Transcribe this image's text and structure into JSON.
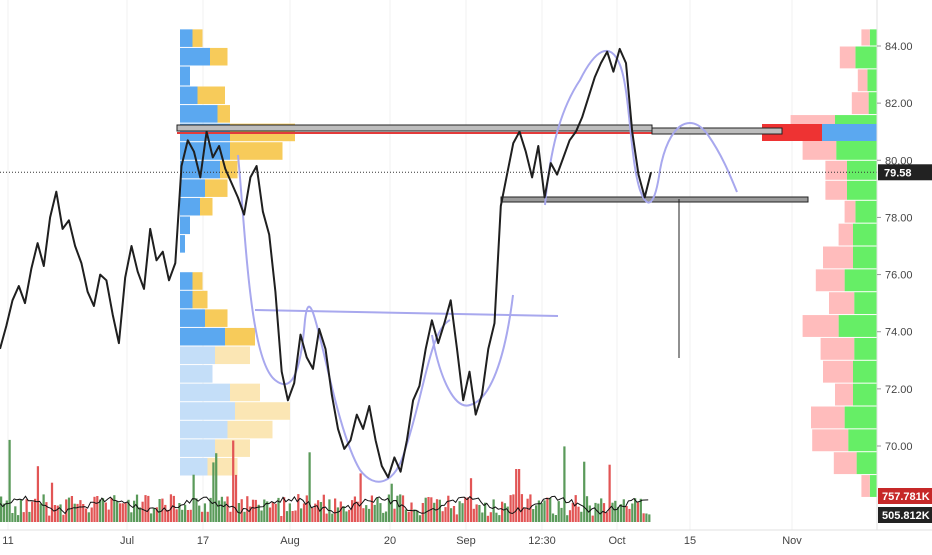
{
  "colors": {
    "price_line": "#1f1f1f",
    "pattern": "#a8a8ee",
    "vp_left_up": "#5ba8f0",
    "vp_left_down": "#f7cb5a",
    "vp_left_up_light": "#c4def8",
    "vp_left_down_light": "#fbe6b4",
    "vp_right_buy": "#66ee66",
    "vp_right_sell": "#ffbcbc",
    "poc_blue": "#5ba8f0",
    "poc_red": "#ee3333",
    "vol_up": "#5a9a5a",
    "vol_down": "#e25555",
    "vol_ma": "#111111",
    "zone_box_fill": "#bdbdbd",
    "zone_box_red_line": "#e33b3b",
    "axis_text": "#444444",
    "grid": "#f1f1f1",
    "badge_dark": "#222222",
    "badge_red": "#c62828"
  },
  "time_axis": {
    "labels": [
      "11",
      "Jul",
      "17",
      "Aug",
      "20",
      "Sep",
      "12:30",
      "Oct",
      "15",
      "Nov"
    ]
  },
  "price_axis": {
    "ticks": [
      "84.00",
      "82.00",
      "80.00",
      "78.00",
      "76.00",
      "74.00",
      "72.00",
      "70.00"
    ],
    "current_price_label": "79.58"
  },
  "volume_labels": {
    "volume": "757.781K",
    "volume_ma": "505.812K"
  },
  "chart_data": {
    "type": "line",
    "title": "",
    "xlabel": "",
    "ylabel": "",
    "ylim": [
      68.5,
      85.2
    ],
    "current_price": 79.58,
    "series": [
      {
        "values": [
          73.4,
          74.2,
          75.1,
          75.6,
          75.0,
          76.2,
          77.1,
          76.3,
          78.0,
          78.9,
          77.6,
          77.9,
          77.0,
          76.4,
          75.4,
          74.9,
          76.0,
          75.8,
          74.6,
          73.6,
          75.9,
          77.0,
          76.1,
          75.5,
          77.6,
          76.5,
          76.8,
          75.8,
          76.4,
          79.8,
          80.7,
          80.3,
          79.4,
          81.0,
          80.1,
          80.5,
          79.7,
          79.2,
          78.7,
          78.1,
          79.4,
          79.8,
          78.2,
          77.4,
          75.4,
          72.6,
          71.6,
          72.2,
          73.9,
          73.1,
          72.7,
          74.1,
          73.4,
          71.8,
          70.6,
          69.9,
          70.2,
          71.1,
          70.6,
          71.4,
          70.2,
          69.3,
          68.9,
          69.6,
          69.1,
          70.2,
          71.6,
          72.1,
          73.4,
          74.4,
          73.6,
          74.3,
          75.1,
          73.4,
          71.6,
          72.6,
          71.1,
          71.8,
          73.4,
          74.3,
          78.4,
          79.5,
          80.6,
          81.0,
          80.3,
          79.4,
          80.5,
          78.7,
          79.9,
          79.5,
          80.1,
          80.7,
          81.0,
          81.5,
          82.2,
          82.9,
          83.4,
          83.8,
          83.1,
          83.9,
          83.4,
          81.0,
          79.5,
          78.7,
          79.58
        ]
      }
    ],
    "volume_profile_left": {
      "price_ranges": [
        [
          83.95,
          84.6
        ],
        [
          83.3,
          83.95
        ],
        [
          82.6,
          83.3
        ],
        [
          81.95,
          82.6
        ],
        [
          81.3,
          81.95
        ],
        [
          80.65,
          81.3
        ],
        [
          80.0,
          80.65
        ],
        [
          79.35,
          80.0
        ],
        [
          78.7,
          79.35
        ],
        [
          78.05,
          78.7
        ],
        [
          77.4,
          78.05
        ],
        [
          76.75,
          77.4
        ],
        [
          76.1,
          76.75
        ],
        [
          75.45,
          76.1
        ],
        [
          74.8,
          75.45
        ],
        [
          74.15,
          74.8
        ],
        [
          73.5,
          74.15
        ],
        [
          72.85,
          73.5
        ],
        [
          72.2,
          72.85
        ],
        [
          71.55,
          72.2
        ],
        [
          70.9,
          71.55
        ],
        [
          70.25,
          70.9
        ],
        [
          69.6,
          70.25
        ],
        [
          68.95,
          69.6
        ]
      ],
      "up_volume": [
        5,
        12,
        4,
        7,
        15,
        20,
        20,
        16,
        10,
        8,
        4,
        2,
        0,
        5,
        5,
        10,
        18,
        14,
        13,
        20,
        22,
        19,
        14,
        11
      ],
      "down_volume": [
        4,
        7,
        0,
        11,
        5,
        26,
        21,
        7,
        9,
        5,
        0,
        0,
        0,
        4,
        6,
        9,
        12,
        14,
        0,
        12,
        22,
        18,
        14,
        12
      ]
    },
    "volume_profile_right": {
      "price_ranges": [
        [
          84.0,
          84.6
        ],
        [
          83.2,
          84.0
        ],
        [
          82.4,
          83.2
        ],
        [
          81.6,
          82.4
        ],
        [
          80.8,
          81.6
        ],
        [
          80.0,
          80.8
        ],
        [
          79.3,
          80.0
        ],
        [
          78.6,
          79.3
        ],
        [
          77.8,
          78.6
        ],
        [
          77.0,
          77.8
        ],
        [
          76.2,
          77.0
        ],
        [
          75.4,
          76.2
        ],
        [
          74.6,
          75.4
        ],
        [
          73.8,
          74.6
        ],
        [
          73.0,
          73.8
        ],
        [
          72.2,
          73.0
        ],
        [
          71.4,
          72.2
        ],
        [
          70.6,
          71.4
        ],
        [
          69.8,
          70.6
        ],
        [
          69.0,
          69.8
        ],
        [
          68.2,
          69.0
        ]
      ],
      "buy_volume": [
        6,
        18,
        8,
        7,
        35,
        34,
        25,
        25,
        18,
        20,
        20,
        27,
        19,
        32,
        19,
        20,
        20,
        27,
        24,
        17,
        6
      ],
      "sell_volume": [
        7,
        13,
        8,
        14,
        37,
        28,
        18,
        18,
        9,
        12,
        25,
        24,
        21,
        30,
        28,
        25,
        15,
        28,
        30,
        19,
        7
      ]
    },
    "horizontal_zones": [
      {
        "from": 80.9,
        "to": 81.1,
        "x_start": 8.0,
        "x_end": 30.5
      },
      {
        "from": 78.5,
        "to": 78.7,
        "x_start": 17.0,
        "x_end": 27.5
      }
    ],
    "volume_bars": {
      "count": 117,
      "seed": 42,
      "base": 280,
      "ma": 300
    }
  }
}
